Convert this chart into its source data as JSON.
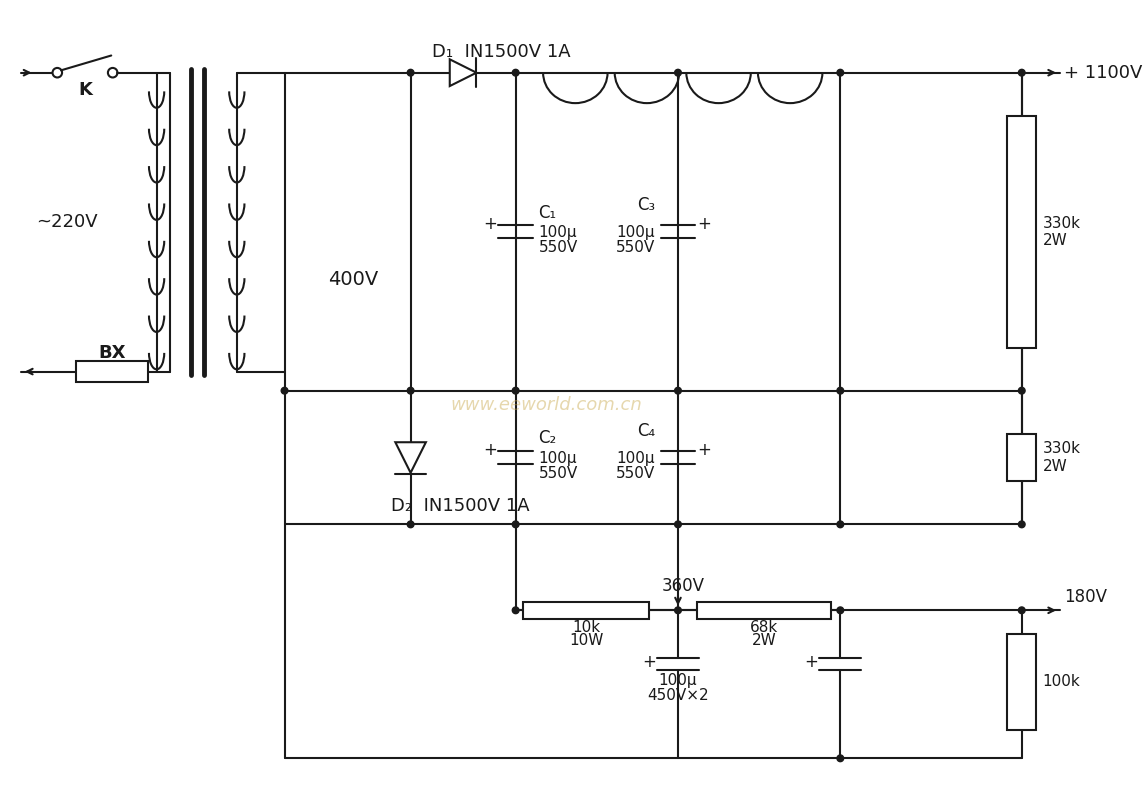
{
  "bg_color": "#ffffff",
  "lc": "#1a1a1a",
  "lw": 1.5,
  "watermark": "www.eeworld.com.cn",
  "D1_label": "D₁  IN1500V 1A",
  "D2_label": "D₂  IN1500V 1A",
  "C1_label": [
    "C₁",
    "100μ",
    "550V"
  ],
  "C2_label": [
    "C₂",
    "100μ",
    "550V"
  ],
  "C3_label": [
    "C₃",
    "100μ",
    "550V"
  ],
  "C4_label": [
    "C₄",
    "100μ",
    "550V"
  ],
  "R1_label": [
    "330k",
    "2W"
  ],
  "R2_label": [
    "330k",
    "2W"
  ],
  "R3_label": [
    "10k",
    "10W"
  ],
  "R4_label": [
    "68k",
    "2W"
  ],
  "C5_label": [
    "100μ",
    "450V×2"
  ],
  "R5_label": "100k",
  "V_primary": "~220V",
  "V_secondary": "400V",
  "V_out1": "+ 1100V",
  "V_out2": "180V",
  "V_360": "360V",
  "label_K": "K",
  "label_BX": "BX"
}
